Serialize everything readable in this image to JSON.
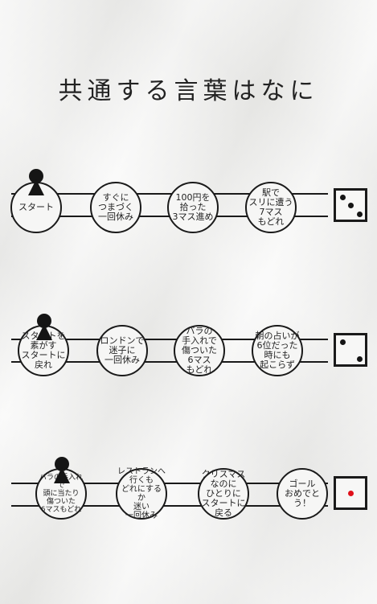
{
  "title": "共通する言葉はなに",
  "rows": [
    {
      "cells": [
        "スタート",
        "すぐに\nつまづく\n一回休み",
        "100円を\n拾った\n3マス進め",
        "駅で\nスリに遭う\n7マス\nもどれ"
      ],
      "die_value": 3
    },
    {
      "cells": [
        "スタートを\n素がす\nスタートに\n戻れ",
        "ロンドンで\n迷子に\n一回休み",
        "バラの\n手入れで\n傷ついた\n6マス\nもどれ",
        "朝の占いが\n6位だった\n時にも\n起こらず"
      ],
      "die_value": 2
    },
    {
      "cells": [
        "バラの手入れで\n頭に当たり\n傷ついた\n6マスもどれ",
        "レストランへ\n行くも\nどれにするか\n迷い\n一回休み",
        "クリスマス\nなのに\nひとりに\nスタートに\n戻る",
        "ゴール\nおめでとう！"
      ],
      "die_value": 1
    }
  ],
  "colors": {
    "ink": "#1a1a1a",
    "pip_red": "#e0101a"
  },
  "icons": {
    "piece": "game-piece-icon",
    "die": "die-icon"
  }
}
